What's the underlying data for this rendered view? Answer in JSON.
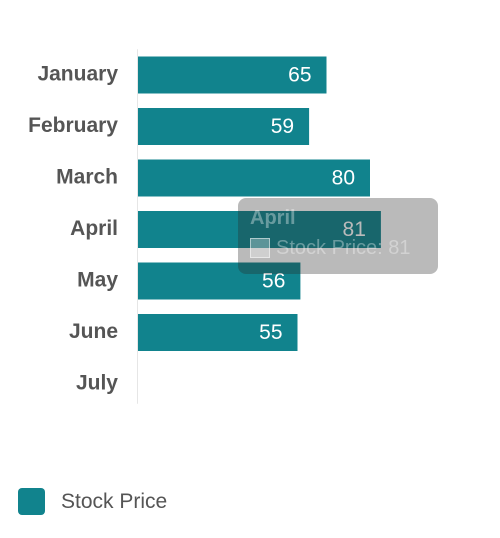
{
  "chart_data": {
    "type": "bar",
    "orientation": "horizontal",
    "categories": [
      "January",
      "February",
      "March",
      "April",
      "May",
      "June",
      "July"
    ],
    "series": [
      {
        "name": "Stock Price",
        "color": "#11838d",
        "values": [
          65,
          59,
          80,
          81,
          56,
          55,
          null
        ]
      }
    ],
    "data_labels": true,
    "grid": false,
    "legend_position": "bottom-left",
    "highlighted_category": "April"
  },
  "tooltip": {
    "title": "April",
    "text": "Stock Price: 81"
  },
  "legend": {
    "items": [
      {
        "label": "Stock Price",
        "color": "#11838d"
      }
    ]
  }
}
